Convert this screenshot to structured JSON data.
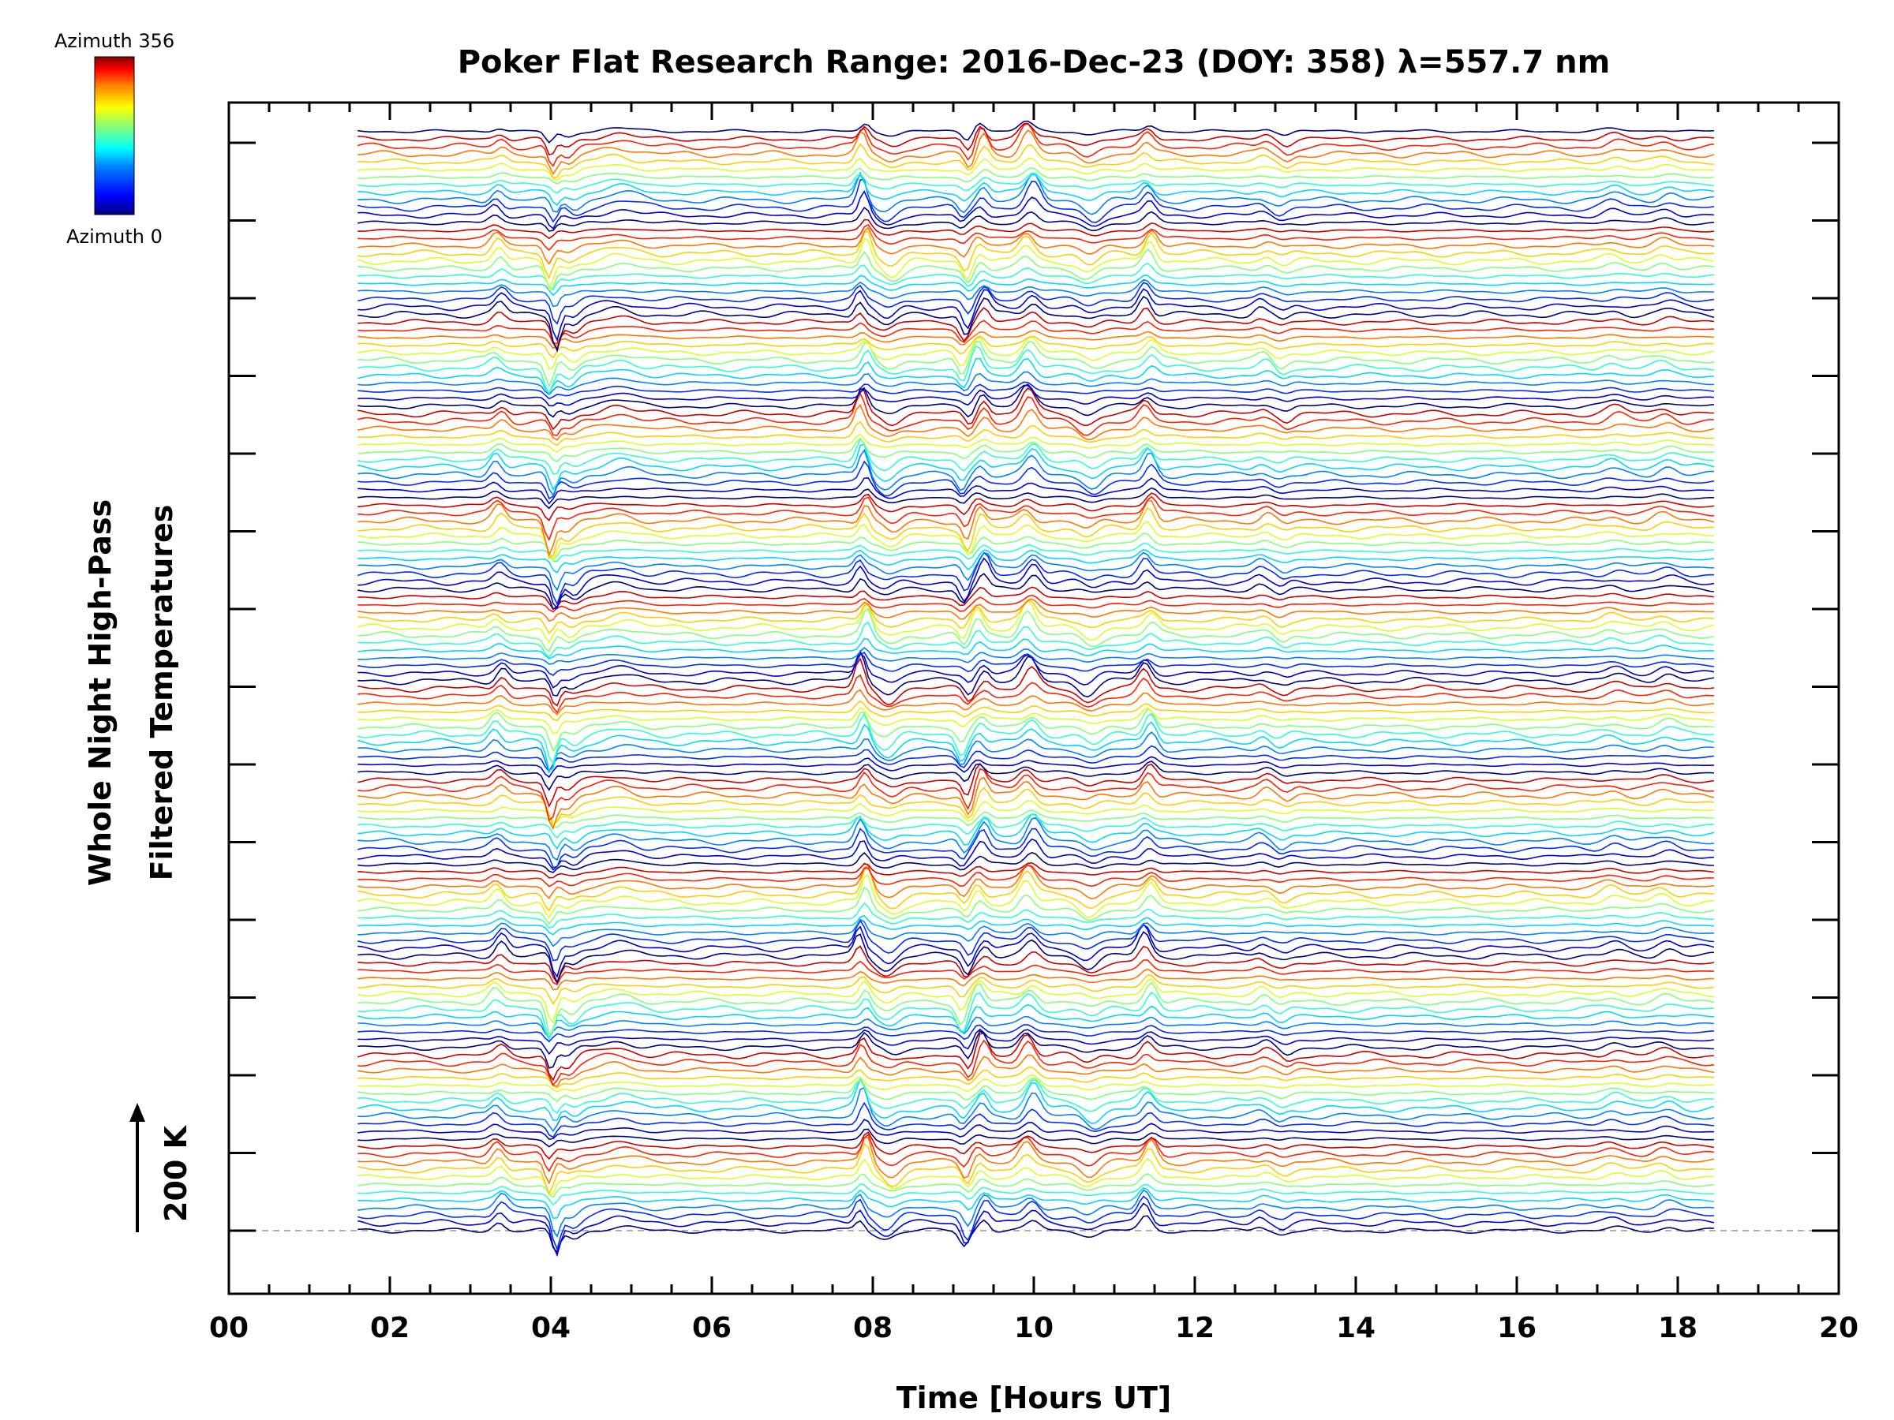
{
  "chart_data": {
    "type": "line",
    "title": "Poker Flat Research Range: 2016-Dec-23 (DOY: 358) λ=557.7 nm",
    "xlabel": "Time [Hours UT]",
    "ylabel_line1": "Whole Night High-Pass",
    "ylabel_line2": "Filtered Temperatures",
    "scale_label": "200 K",
    "xlim": [
      0,
      20
    ],
    "x_ticks": [
      "00",
      "02",
      "04",
      "06",
      "08",
      "10",
      "12",
      "14",
      "16",
      "18",
      "20"
    ],
    "colorbar": {
      "top_label": "Azimuth 356",
      "bottom_label": "Azimuth 0",
      "min": 0,
      "max": 356
    },
    "time_range": [
      1.6,
      18.45
    ],
    "n_traces": 145,
    "azimuth_step_deg": 30,
    "trace_offset_K": 20,
    "features": [
      {
        "t": 3.35,
        "amp": 22,
        "w": 0.1
      },
      {
        "t": 4.02,
        "amp": -45,
        "w": 0.07
      },
      {
        "t": 4.25,
        "amp": -18,
        "w": 0.12
      },
      {
        "t": 4.85,
        "amp": 12,
        "w": 0.25
      },
      {
        "t": 7.88,
        "amp": 40,
        "w": 0.08
      },
      {
        "t": 8.2,
        "amp": -20,
        "w": 0.15
      },
      {
        "t": 9.15,
        "amp": -30,
        "w": 0.08
      },
      {
        "t": 9.35,
        "amp": 28,
        "w": 0.09
      },
      {
        "t": 9.95,
        "amp": 35,
        "w": 0.12
      },
      {
        "t": 10.7,
        "amp": -18,
        "w": 0.15
      },
      {
        "t": 11.42,
        "amp": 32,
        "w": 0.1
      },
      {
        "t": 12.85,
        "amp": 10,
        "w": 0.1
      },
      {
        "t": 13.1,
        "amp": -10,
        "w": 0.1
      },
      {
        "t": 17.2,
        "amp": 10,
        "w": 0.15
      },
      {
        "t": 17.85,
        "amp": 12,
        "w": 0.15
      }
    ],
    "colors": {
      "colorbar_stops": [
        "#00007f",
        "#0000ff",
        "#007fff",
        "#00ffff",
        "#7fff7f",
        "#ffff00",
        "#ff7f00",
        "#ff0000",
        "#7f0000"
      ],
      "axis": "#000000",
      "baseline": "#b0b0b0"
    }
  }
}
